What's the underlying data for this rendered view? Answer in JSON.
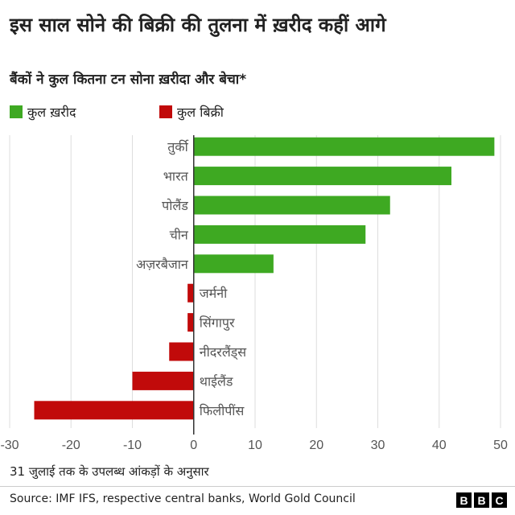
{
  "title": "इस साल सोने की बिक्री की तुलना में ख़रीद कहीं आगे",
  "subtitle": "बैंकों ने कुल कितना टन सोना ख़रीदा और बेचा*",
  "legend": [
    {
      "label": "कुल ख़रीद",
      "color": "#3ea922"
    },
    {
      "label": "कुल बिक्री",
      "color": "#c10a0a"
    }
  ],
  "chart_data": {
    "type": "bar",
    "orientation": "horizontal",
    "categories": [
      "तुर्की",
      "भारत",
      "पोलैंड",
      "चीन",
      "अज़रबैजान",
      "जर्मनी",
      "सिंगापुर",
      "नीदरलैंड्स",
      "थाईलैंड",
      "फिलीपींस"
    ],
    "values": [
      49,
      42,
      32,
      28,
      13,
      -1,
      -1,
      -4,
      -10,
      -26
    ],
    "xlim": [
      -30,
      50
    ],
    "xticks": [
      -30,
      -20,
      -10,
      0,
      10,
      20,
      30,
      40,
      50
    ],
    "grid": true,
    "legend_position": "top-left"
  },
  "colors": {
    "positive": "#3ea922",
    "negative": "#c10a0a",
    "grid": "#dddddd",
    "axis": "#333333",
    "tick_text": "#555555"
  },
  "footnote": "31 जुलाई तक के उपलब्ध आंकड़ों के अनुसार",
  "source": "Source: IMF IFS, respective central banks, World Gold Council",
  "logo": [
    "B",
    "B",
    "C"
  ]
}
